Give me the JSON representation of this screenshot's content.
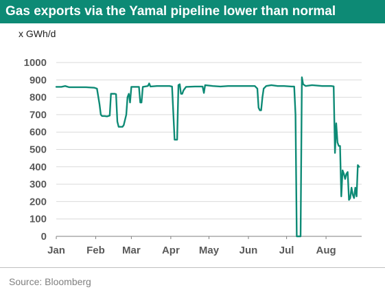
{
  "title": "Gas exports via the Yamal pipeline lower than normal",
  "unit_label": "x GWh/d",
  "source": "Source: Bloomberg",
  "chart_data": {
    "type": "line",
    "title": "Gas exports via the Yamal pipeline lower than normal",
    "ylabel": "x GWh/d",
    "xlabel": "",
    "ylim": [
      0,
      1000
    ],
    "yticks": [
      0,
      100,
      200,
      300,
      400,
      500,
      600,
      700,
      800,
      900,
      1000
    ],
    "x_tick_labels": [
      "Jan",
      "Feb",
      "Mar",
      "Apr",
      "May",
      "Jun",
      "Jul",
      "Aug"
    ],
    "grid": true,
    "legend": "none",
    "line_color": "#0d8a75",
    "series": [
      {
        "values": [
          [
            1,
            860
          ],
          [
            5,
            860
          ],
          [
            8,
            865
          ],
          [
            11,
            858
          ],
          [
            18,
            858
          ],
          [
            24,
            858
          ],
          [
            31,
            855
          ],
          [
            33,
            850
          ],
          [
            35,
            760
          ],
          [
            36,
            700
          ],
          [
            37,
            692
          ],
          [
            39,
            692
          ],
          [
            41,
            690
          ],
          [
            43,
            695
          ],
          [
            44,
            820
          ],
          [
            47,
            820
          ],
          [
            48,
            818
          ],
          [
            49,
            660
          ],
          [
            50,
            630
          ],
          [
            53,
            630
          ],
          [
            54,
            640
          ],
          [
            56,
            700
          ],
          [
            57,
            800
          ],
          [
            58,
            820
          ],
          [
            59,
            770
          ],
          [
            60,
            860
          ],
          [
            66,
            860
          ],
          [
            67,
            770
          ],
          [
            68,
            770
          ],
          [
            69,
            860
          ],
          [
            73,
            865
          ],
          [
            74,
            880
          ],
          [
            75,
            862
          ],
          [
            80,
            865
          ],
          [
            85,
            865
          ],
          [
            90,
            865
          ],
          [
            92,
            862
          ],
          [
            94,
            556
          ],
          [
            96,
            556
          ],
          [
            97,
            870
          ],
          [
            98,
            875
          ],
          [
            99,
            820
          ],
          [
            100,
            820
          ],
          [
            101,
            840
          ],
          [
            103,
            860
          ],
          [
            110,
            862
          ],
          [
            116,
            862
          ],
          [
            117,
            825
          ],
          [
            118,
            870
          ],
          [
            124,
            865
          ],
          [
            130,
            862
          ],
          [
            136,
            865
          ],
          [
            142,
            865
          ],
          [
            150,
            865
          ],
          [
            157,
            865
          ],
          [
            159,
            850
          ],
          [
            160,
            740
          ],
          [
            161,
            725
          ],
          [
            162,
            725
          ],
          [
            163,
            800
          ],
          [
            164,
            850
          ],
          [
            166,
            865
          ],
          [
            170,
            870
          ],
          [
            175,
            865
          ],
          [
            180,
            865
          ],
          [
            186,
            862
          ],
          [
            188,
            862
          ],
          [
            189,
            700
          ],
          [
            190,
            0
          ],
          [
            191,
            0
          ],
          [
            192,
            0
          ],
          [
            193,
            0
          ],
          [
            194,
            915
          ],
          [
            195,
            875
          ],
          [
            197,
            865
          ],
          [
            202,
            870
          ],
          [
            210,
            865
          ],
          [
            217,
            865
          ],
          [
            219,
            863
          ],
          [
            220,
            480
          ],
          [
            221,
            650
          ],
          [
            222,
            540
          ],
          [
            223,
            520
          ],
          [
            224,
            520
          ],
          [
            225,
            230
          ],
          [
            226,
            380
          ],
          [
            227,
            360
          ],
          [
            228,
            330
          ],
          [
            229,
            360
          ],
          [
            230,
            370
          ],
          [
            231,
            210
          ],
          [
            232,
            220
          ],
          [
            233,
            280
          ],
          [
            234,
            240
          ],
          [
            235,
            220
          ],
          [
            236,
            280
          ],
          [
            237,
            230
          ],
          [
            238,
            410
          ],
          [
            239,
            400
          ]
        ]
      }
    ]
  }
}
